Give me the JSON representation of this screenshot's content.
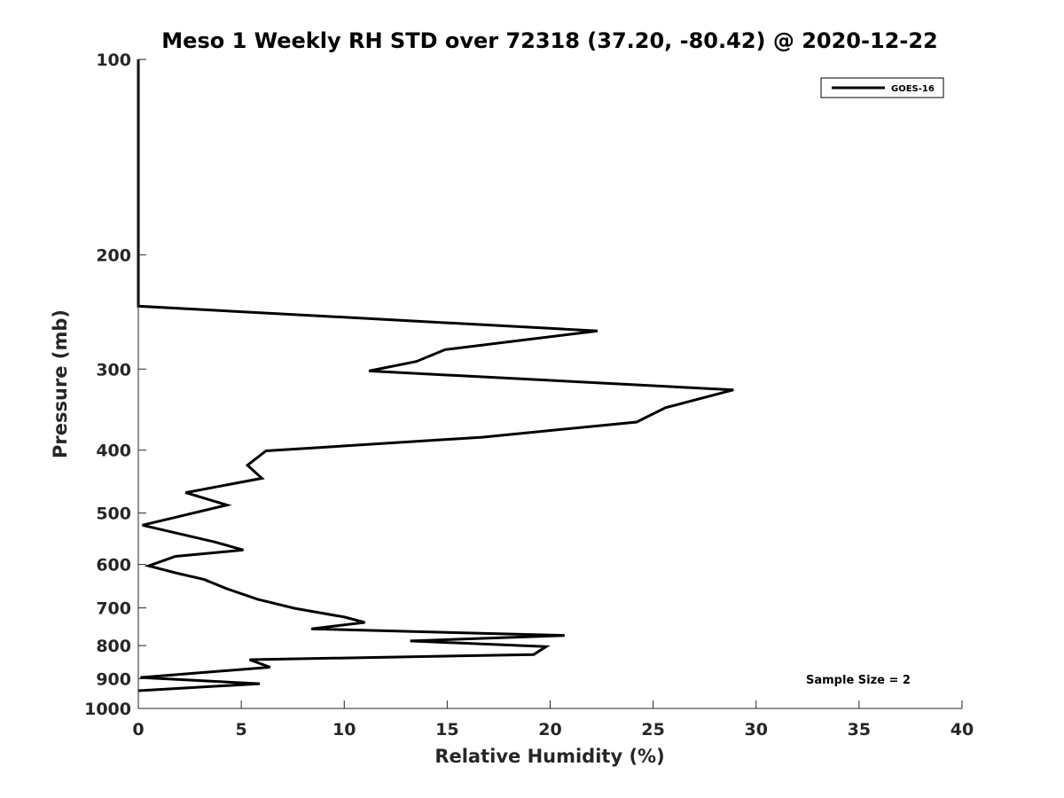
{
  "chart_data": {
    "type": "line",
    "title": "Meso 1 Weekly RH STD over 72318 (37.20, -80.42) @ 2020-12-22",
    "xlabel": "Relative Humidity (%)",
    "ylabel": "Pressure (mb)",
    "xlim": [
      0,
      40
    ],
    "ylim": [
      100,
      1000
    ],
    "y_scale": "log",
    "y_reversed": true,
    "x_ticks": [
      0,
      5,
      10,
      15,
      20,
      25,
      30,
      35,
      40
    ],
    "y_ticks": [
      100,
      200,
      300,
      400,
      500,
      600,
      700,
      800,
      900,
      1000
    ],
    "grid": false,
    "legend_position": "top-right",
    "series": [
      {
        "name": "GOES-16",
        "color": "#000000",
        "points": [
          [
            0,
            100
          ],
          [
            0,
            200
          ],
          [
            0,
            240
          ],
          [
            22.3,
            262
          ],
          [
            14.9,
            280
          ],
          [
            13.5,
            292
          ],
          [
            11.2,
            302
          ],
          [
            28.9,
            323
          ],
          [
            25.6,
            344
          ],
          [
            24.2,
            362
          ],
          [
            16.7,
            382
          ],
          [
            6.2,
            401
          ],
          [
            5.3,
            422
          ],
          [
            6.0,
            442
          ],
          [
            2.3,
            465
          ],
          [
            4.3,
            486
          ],
          [
            0.2,
            522
          ],
          [
            3.7,
            554
          ],
          [
            5.1,
            570
          ],
          [
            1.8,
            583
          ],
          [
            0.5,
            603
          ],
          [
            1.8,
            618
          ],
          [
            3.2,
            633
          ],
          [
            4.3,
            654
          ],
          [
            5.8,
            679
          ],
          [
            7.6,
            701
          ],
          [
            10.0,
            723
          ],
          [
            11.0,
            737
          ],
          [
            8.4,
            754
          ],
          [
            20.7,
            772
          ],
          [
            13.2,
            787
          ],
          [
            19.8,
            803
          ],
          [
            19.2,
            826
          ],
          [
            5.4,
            841
          ],
          [
            6.4,
            864
          ],
          [
            0.1,
            896
          ],
          [
            5.9,
            916
          ],
          [
            0,
            939
          ]
        ]
      }
    ],
    "annotations": [
      "Sample Size = 2"
    ]
  }
}
